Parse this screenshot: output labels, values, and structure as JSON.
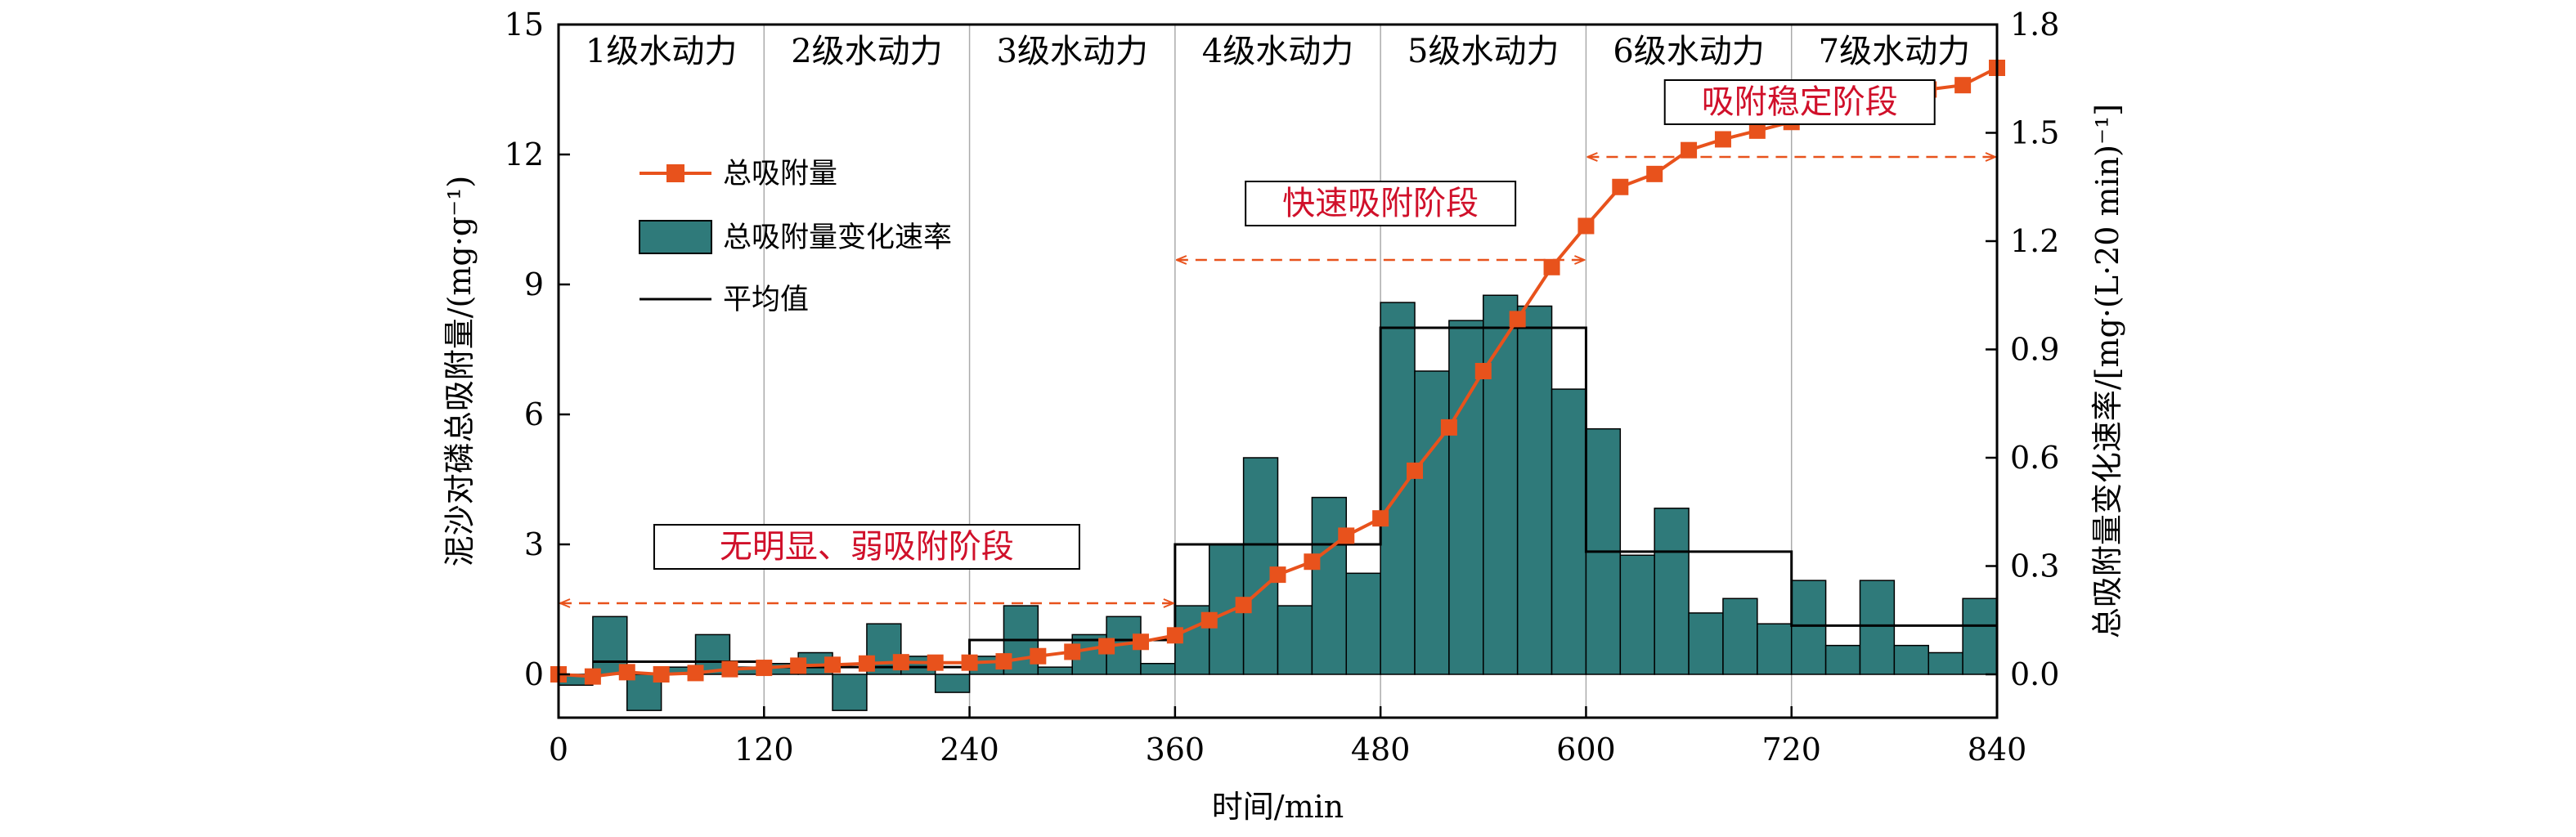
{
  "chart_data": {
    "type": "bar",
    "xlabel": "时间/min",
    "ylabel_left": "泥沙对磷总吸附量/(mg·g⁻¹)",
    "ylabel_right": "总吸附量变化速率/[mg·(L·20 min)⁻¹]",
    "xlim": [
      0,
      840
    ],
    "ylim_left": [
      -1.0,
      15
    ],
    "ylim_right": [
      -0.12,
      1.8
    ],
    "xticks": [
      0,
      120,
      240,
      360,
      480,
      600,
      720,
      840
    ],
    "yticks_left": [
      0,
      3,
      6,
      9,
      12,
      15
    ],
    "yticks_right": [
      "0.0",
      "0.3",
      "0.6",
      "0.9",
      "1.2",
      "1.5",
      "1.8"
    ],
    "grid": false,
    "legend_position": "upper-left",
    "colors": {
      "bar": "#2f7a7a",
      "line": "#e8521c",
      "annotation_text": "#d0102a",
      "arrow": "#e8521c",
      "divider": "#aaaaaa"
    },
    "levels": [
      "1级水动力",
      "2级水动力",
      "3级水动力",
      "4级水动力",
      "5级水动力",
      "6级水动力",
      "7级水动力"
    ],
    "level_boundaries": [
      0,
      120,
      240,
      360,
      480,
      600,
      720,
      840
    ],
    "phases": [
      {
        "label": "无明显、弱吸附阶段",
        "x_start": 0,
        "x_end": 360
      },
      {
        "label": "快速吸附阶段",
        "x_start": 360,
        "x_end": 600
      },
      {
        "label": "吸附稳定阶段",
        "x_start": 600,
        "x_end": 840
      }
    ],
    "series": [
      {
        "name": "总吸附量变化速率",
        "kind": "bar",
        "axis": "right",
        "x_start": [
          0,
          20,
          40,
          60,
          80,
          100,
          120,
          140,
          160,
          180,
          200,
          220,
          240,
          260,
          280,
          300,
          320,
          340,
          360,
          380,
          400,
          420,
          440,
          460,
          480,
          500,
          520,
          540,
          560,
          580,
          600,
          620,
          640,
          660,
          680,
          700,
          720,
          740,
          760,
          780,
          800,
          820
        ],
        "x_end": [
          20,
          40,
          60,
          80,
          100,
          120,
          140,
          160,
          180,
          200,
          220,
          240,
          260,
          280,
          300,
          320,
          340,
          360,
          380,
          400,
          420,
          440,
          460,
          480,
          500,
          520,
          540,
          560,
          580,
          600,
          620,
          640,
          660,
          680,
          700,
          720,
          740,
          760,
          780,
          800,
          820,
          840
        ],
        "values": [
          -0.03,
          0.16,
          -0.1,
          0.02,
          0.11,
          0.02,
          0.03,
          0.06,
          -0.1,
          0.14,
          0.05,
          -0.05,
          0.05,
          0.19,
          0.02,
          0.11,
          0.16,
          0.03,
          0.19,
          0.36,
          0.6,
          0.19,
          0.49,
          0.28,
          1.03,
          0.84,
          0.98,
          1.05,
          1.02,
          0.79,
          0.68,
          0.33,
          0.46,
          0.17,
          0.21,
          0.14,
          0.26,
          0.08,
          0.26,
          0.08,
          0.06,
          0.21
        ]
      },
      {
        "name": "总吸附量",
        "kind": "line",
        "axis": "left",
        "x": [
          0,
          20,
          40,
          60,
          80,
          100,
          120,
          140,
          160,
          180,
          200,
          220,
          240,
          260,
          280,
          300,
          320,
          340,
          360,
          380,
          400,
          420,
          440,
          460,
          480,
          500,
          520,
          540,
          560,
          580,
          600,
          620,
          640,
          660,
          680,
          700,
          720,
          740,
          760,
          780,
          800,
          820,
          840
        ],
        "values": [
          0.0,
          -0.05,
          0.05,
          0.0,
          0.03,
          0.12,
          0.15,
          0.2,
          0.22,
          0.25,
          0.28,
          0.27,
          0.27,
          0.3,
          0.42,
          0.52,
          0.65,
          0.75,
          0.9,
          1.25,
          1.6,
          2.3,
          2.6,
          3.2,
          3.6,
          4.7,
          5.7,
          7.0,
          8.2,
          9.4,
          10.35,
          11.25,
          11.55,
          12.1,
          12.35,
          12.55,
          12.75,
          13.0,
          13.15,
          13.4,
          13.5,
          13.6,
          14.0
        ]
      },
      {
        "name": "平均值",
        "kind": "step",
        "axis": "right",
        "x_start": [
          20,
          120,
          240,
          360,
          480,
          600,
          720
        ],
        "x_end": [
          120,
          240,
          360,
          480,
          600,
          720,
          840
        ],
        "values": [
          0.035,
          0.02,
          0.095,
          0.36,
          0.96,
          0.34,
          0.135
        ]
      }
    ],
    "legend": [
      {
        "label": "总吸附量",
        "kind": "line"
      },
      {
        "label": "总吸附量变化速率",
        "kind": "bar"
      },
      {
        "label": "平均值",
        "kind": "step"
      }
    ]
  }
}
